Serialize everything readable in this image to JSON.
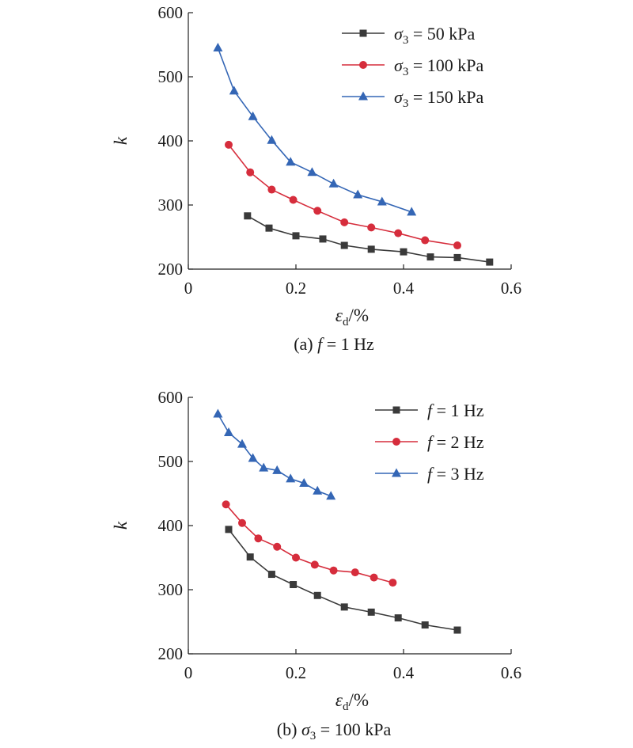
{
  "chart_data": [
    {
      "type": "line",
      "panel_label": "(a)",
      "caption": {
        "prefix": "(a) ",
        "var": "f",
        "rest": " = 1 Hz"
      },
      "xlabel": {
        "sym": "ε",
        "sub": "d",
        "unit": "/%"
      },
      "ylabel": "k",
      "xlim": [
        0,
        0.6
      ],
      "ylim": [
        200,
        600
      ],
      "xticks": [
        "0",
        "0.2",
        "0.4",
        "0.6"
      ],
      "yticks": [
        "200",
        "300",
        "400",
        "500",
        "600"
      ],
      "grid": false,
      "legend_position": "top-right",
      "series": [
        {
          "name": "σ3 = 50 kPa",
          "legend": {
            "var": "σ",
            "sub": "3",
            "rest": " = 50 kPa"
          },
          "color": "#3a3a3a",
          "marker": "square",
          "x": [
            0.11,
            0.15,
            0.2,
            0.25,
            0.29,
            0.34,
            0.4,
            0.45,
            0.5,
            0.56
          ],
          "y": [
            283,
            264,
            252,
            247,
            237,
            231,
            227,
            219,
            218,
            211
          ]
        },
        {
          "name": "σ3 = 100 kPa",
          "legend": {
            "var": "σ",
            "sub": "3",
            "rest": " = 100 kPa"
          },
          "color": "#d62d3c",
          "marker": "circle",
          "x": [
            0.075,
            0.115,
            0.155,
            0.195,
            0.24,
            0.29,
            0.34,
            0.39,
            0.44,
            0.5
          ],
          "y": [
            394,
            351,
            324,
            308,
            291,
            273,
            265,
            256,
            245,
            237
          ]
        },
        {
          "name": "σ3 = 150 kPa",
          "legend": {
            "var": "σ",
            "sub": "3",
            "rest": " = 150 kPa"
          },
          "color": "#3466b5",
          "marker": "triangle",
          "x": [
            0.055,
            0.085,
            0.12,
            0.155,
            0.19,
            0.23,
            0.27,
            0.315,
            0.36,
            0.415
          ],
          "y": [
            545,
            478,
            438,
            401,
            367,
            351,
            333,
            316,
            305,
            289
          ]
        }
      ]
    },
    {
      "type": "line",
      "panel_label": "(b)",
      "caption": {
        "prefix": "(b) ",
        "var": "σ",
        "sub": "3",
        "rest": " = 100 kPa"
      },
      "xlabel": {
        "sym": "ε",
        "sub": "d",
        "unit": "/%"
      },
      "ylabel": "k",
      "xlim": [
        0,
        0.6
      ],
      "ylim": [
        200,
        600
      ],
      "xticks": [
        "0",
        "0.2",
        "0.4",
        "0.6"
      ],
      "yticks": [
        "200",
        "300",
        "400",
        "500",
        "600"
      ],
      "grid": false,
      "legend_position": "top-right",
      "series": [
        {
          "name": "f = 1 Hz",
          "legend": {
            "var": "f",
            "sub": "",
            "rest": " = 1 Hz"
          },
          "color": "#3a3a3a",
          "marker": "square",
          "x": [
            0.075,
            0.115,
            0.155,
            0.195,
            0.24,
            0.29,
            0.34,
            0.39,
            0.44,
            0.5
          ],
          "y": [
            394,
            351,
            324,
            308,
            291,
            273,
            265,
            256,
            245,
            237
          ]
        },
        {
          "name": "f = 2 Hz",
          "legend": {
            "var": "f",
            "sub": "",
            "rest": " = 2 Hz"
          },
          "color": "#d62d3c",
          "marker": "circle",
          "x": [
            0.07,
            0.1,
            0.13,
            0.165,
            0.2,
            0.235,
            0.27,
            0.31,
            0.345,
            0.38
          ],
          "y": [
            433,
            404,
            380,
            367,
            350,
            339,
            330,
            327,
            319,
            311
          ]
        },
        {
          "name": "f = 3 Hz",
          "legend": {
            "var": "f",
            "sub": "",
            "rest": " = 3 Hz"
          },
          "color": "#3466b5",
          "marker": "triangle",
          "x": [
            0.055,
            0.075,
            0.1,
            0.12,
            0.14,
            0.165,
            0.19,
            0.215,
            0.24,
            0.265
          ],
          "y": [
            574,
            545,
            527,
            505,
            490,
            486,
            473,
            466,
            454,
            446
          ]
        }
      ]
    }
  ]
}
